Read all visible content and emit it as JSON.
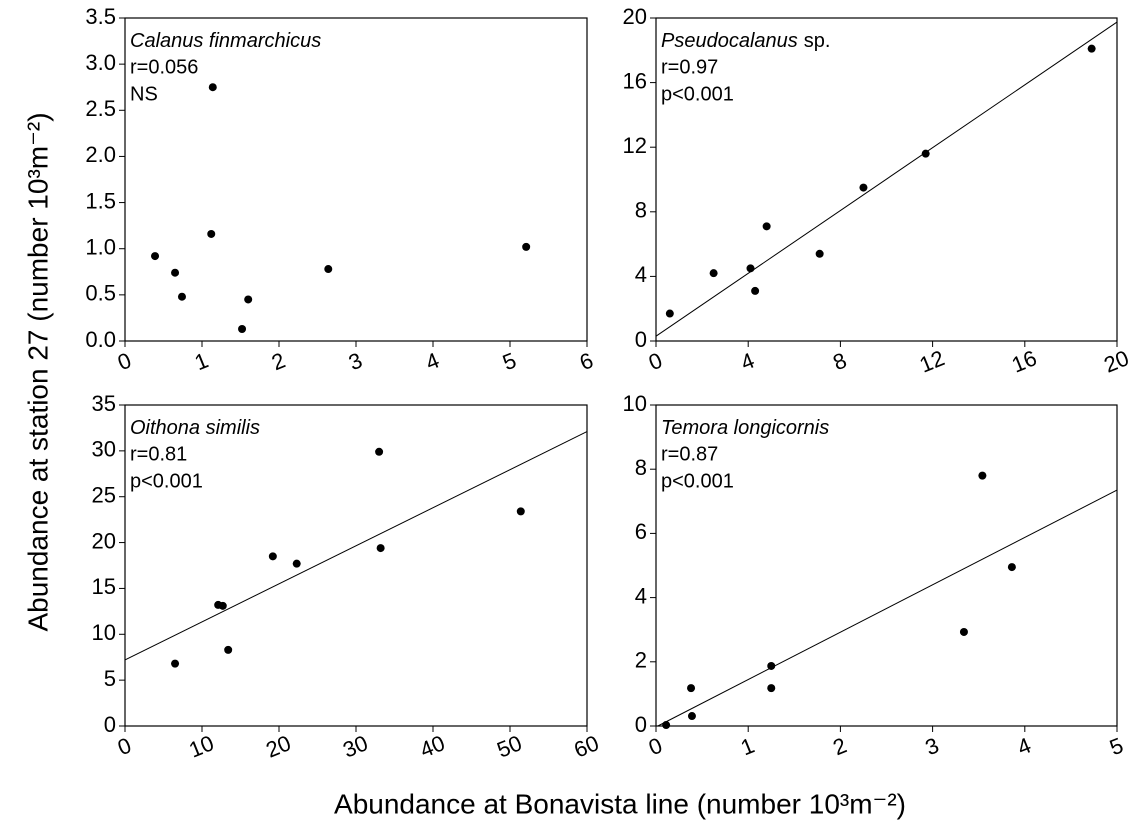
{
  "y_label": "Abundance at station 27 (number 10³m⁻²)",
  "x_label": "Abundance at Bonavista line (number 10³m⁻²)",
  "chart_data": [
    {
      "type": "scatter",
      "species": "Calanus finmarchicus",
      "stats": [
        "r=0.056",
        "NS"
      ],
      "color": "#000000",
      "x": [
        0.39,
        0.65,
        0.74,
        1.12,
        1.14,
        1.6,
        1.52,
        2.64,
        5.21
      ],
      "y": [
        0.92,
        0.74,
        0.48,
        1.16,
        2.75,
        0.45,
        0.13,
        0.78,
        1.02
      ],
      "xlim": [
        0,
        6
      ],
      "xticks": [
        0,
        1,
        2,
        3,
        4,
        5,
        6
      ],
      "ylim": [
        0,
        3.5
      ],
      "yticks": [
        {
          "value": 0,
          "label": "0.0"
        },
        0.5,
        {
          "value": 1,
          "label": "1.0"
        },
        1.5,
        {
          "value": 2,
          "label": "2.0"
        },
        2.5,
        {
          "value": 3,
          "label": "3.0"
        },
        3.5
      ]
    },
    {
      "type": "scatter",
      "species": "Pseudocalanus",
      "species_suffix": "sp.",
      "stats": [
        "r=0.97",
        "p<0.001"
      ],
      "color": "#000000",
      "x": [
        0.6,
        2.5,
        4.1,
        4.3,
        4.8,
        7.1,
        9.0,
        11.7,
        18.9
      ],
      "y": [
        1.7,
        4.2,
        4.5,
        3.1,
        7.1,
        5.4,
        9.5,
        11.6,
        18.1
      ],
      "line_x": [
        0,
        20
      ],
      "line_y": [
        0.3,
        19.75
      ],
      "xlim": [
        0,
        20
      ],
      "xticks": [
        0,
        4,
        8,
        12,
        16,
        20
      ],
      "ylim": [
        0,
        20
      ],
      "yticks": [
        0,
        4,
        8,
        12,
        16,
        20
      ]
    },
    {
      "type": "scatter",
      "species": "Oithona similis",
      "stats": [
        "r=0.81",
        "p<0.001"
      ],
      "color": "#000000",
      "x": [
        6.5,
        12.1,
        12.7,
        13.4,
        19.2,
        22.3,
        33.0,
        33.2,
        51.4
      ],
      "y": [
        6.8,
        13.2,
        13.1,
        8.3,
        18.5,
        17.7,
        29.9,
        19.4,
        23.4
      ],
      "line_x": [
        0,
        60
      ],
      "line_y": [
        7.2,
        32.1
      ],
      "xlim": [
        0,
        60
      ],
      "xticks": [
        0,
        10,
        20,
        30,
        40,
        50,
        60
      ],
      "ylim": [
        0,
        35
      ],
      "yticks": [
        0,
        5,
        10,
        15,
        20,
        25,
        30,
        35
      ]
    },
    {
      "type": "scatter",
      "species": "Temora longicornis",
      "stats": [
        "r=0.87",
        "p<0.001"
      ],
      "color": "#000000",
      "x": [
        0.11,
        0.38,
        0.39,
        1.25,
        1.25,
        3.34,
        3.54,
        3.86
      ],
      "y": [
        0.03,
        1.18,
        0.31,
        1.87,
        1.18,
        2.93,
        7.8,
        4.95
      ],
      "line_x": [
        0.02,
        5
      ],
      "line_y": [
        0,
        7.35
      ],
      "xlim": [
        0,
        5
      ],
      "xticks": [
        0,
        1,
        2,
        3,
        4,
        5
      ],
      "ylim": [
        0,
        10
      ],
      "yticks": [
        0,
        2,
        4,
        6,
        8,
        10
      ]
    }
  ]
}
